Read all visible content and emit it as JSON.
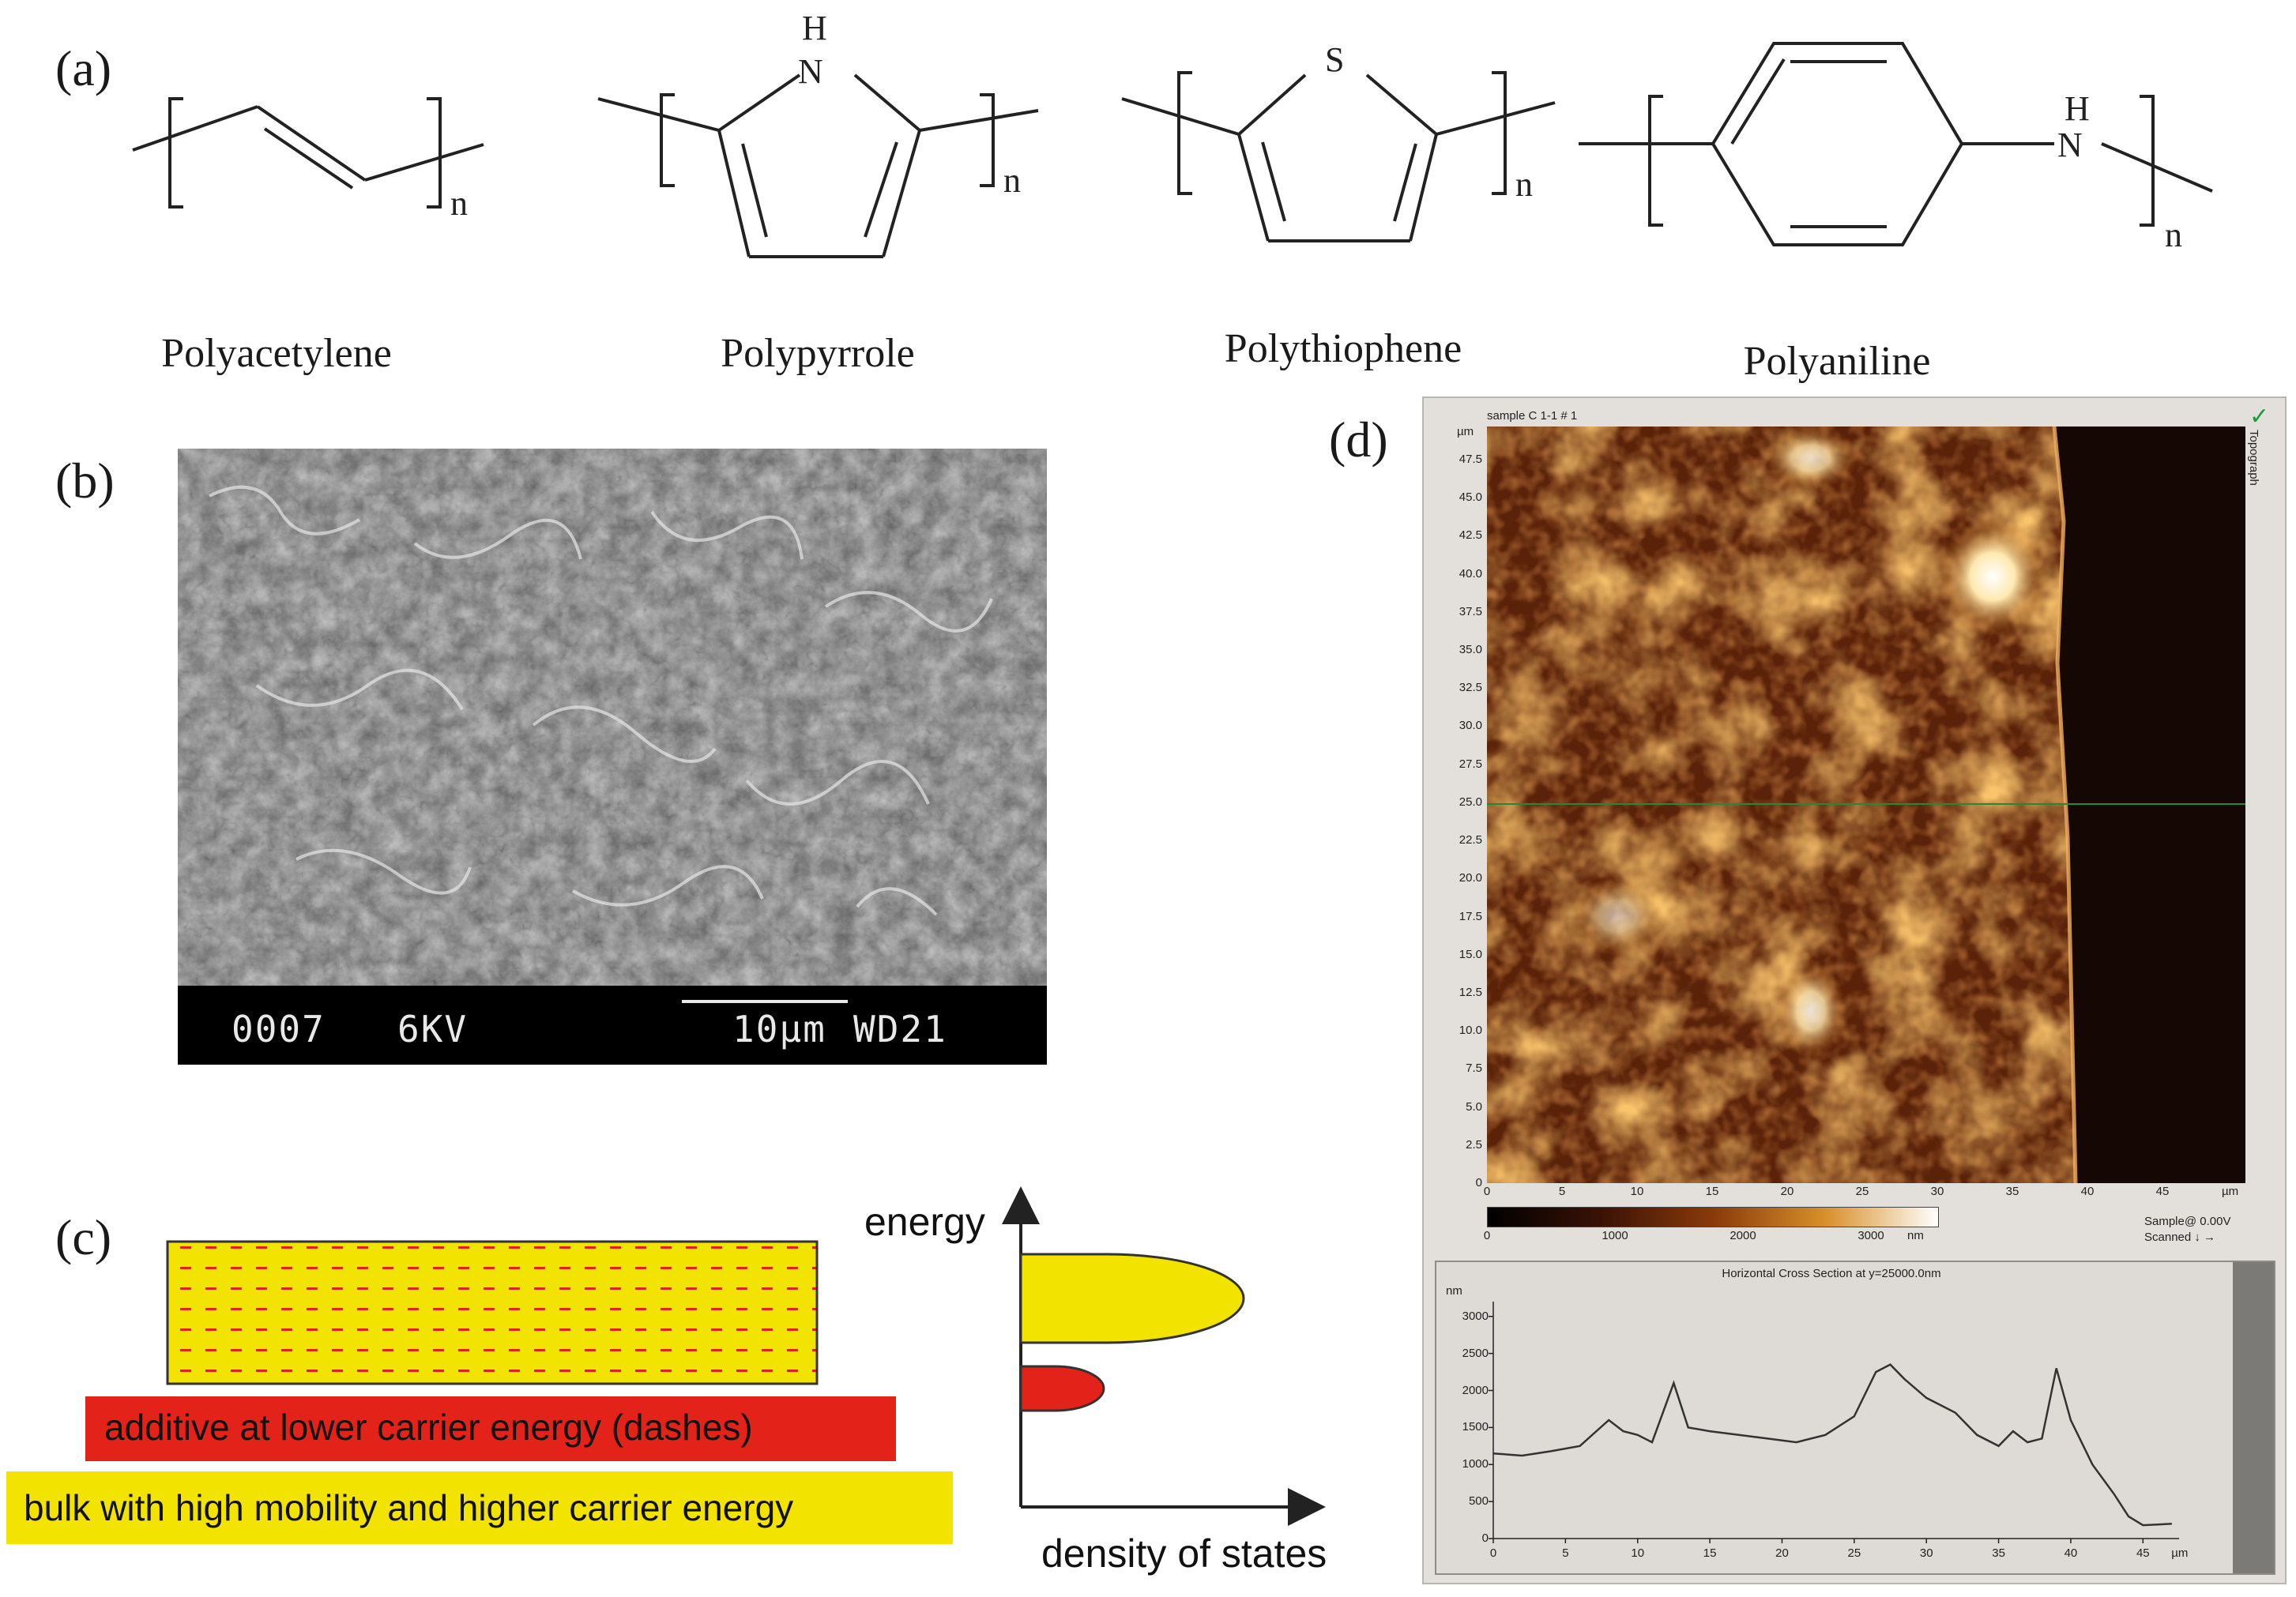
{
  "panels": {
    "a": {
      "label": "(a)",
      "structures": [
        {
          "name": "Polyacetylene",
          "subscript": "n"
        },
        {
          "name": "Polypyrrole",
          "subscript": "n",
          "heteroatom": "H\nN"
        },
        {
          "name": "Polythiophene",
          "subscript": "n",
          "heteroatom": "S"
        },
        {
          "name": "Polyaniline",
          "subscript": "n",
          "heteroatom": "H\nN"
        }
      ],
      "atoms": {
        "nh_h": "H",
        "nh_n": "N",
        "s": "S"
      }
    },
    "b": {
      "label": "(b)",
      "sem_info": {
        "image_no": "0007",
        "voltage": "6KV",
        "scale": "10µm",
        "wd": "WD21"
      }
    },
    "c": {
      "label": "(c)",
      "additive_label": "additive at lower carrier energy (dashes)",
      "bulk_label": "bulk with high mobility and higher carrier energy",
      "energy_axis": "energy",
      "dos_axis": "density of states",
      "colors": {
        "yellow": "#f2e400",
        "red": "#e3231a",
        "dash": "#e3231a"
      }
    },
    "d": {
      "label": "(d)",
      "afm": {
        "title": "sample C 1-1 # 1",
        "y_unit": "µm",
        "y_ticks": [
          "47.5",
          "45.0",
          "42.5",
          "40.0",
          "37.5",
          "35.0",
          "32.5",
          "30.0",
          "27.5",
          "25.0",
          "22.5",
          "20.0",
          "17.5",
          "15.0",
          "12.5",
          "10.0",
          "7.5",
          "5.0",
          "2.5",
          "0"
        ],
        "x_ticks": [
          "0",
          "5",
          "10",
          "15",
          "20",
          "25",
          "30",
          "35",
          "40",
          "45"
        ],
        "x_unit": "µm",
        "side_label": "Topograph",
        "colorbar_ticks": [
          "0",
          "1000",
          "2000",
          "3000"
        ],
        "colorbar_unit": "nm",
        "status_line1": "Sample@ 0.00V",
        "status_line2": "Scanned ↓ →",
        "cross_section_title": "Horizontal Cross Section at y=25000.0nm",
        "cs_y_unit": "nm",
        "cs_y_ticks": [
          "3000",
          "2500",
          "2000",
          "1500",
          "1000",
          "500",
          "0"
        ],
        "cs_x_ticks": [
          "0",
          "5",
          "10",
          "15",
          "20",
          "25",
          "30",
          "35",
          "40",
          "45"
        ],
        "cs_x_unit": "µm",
        "line_color": "#1f8a3a"
      }
    }
  }
}
